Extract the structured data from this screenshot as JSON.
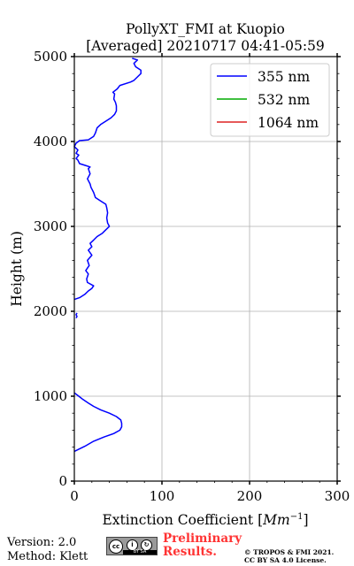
{
  "chart_data": {
    "type": "line",
    "title_line1": "PollyXT_FMI at Kuopio",
    "title_line2": "[Averaged] 20210717 04:41-05:59",
    "xlabel_prefix": "Extinction Coefficient [",
    "xlabel_unit": "Mm",
    "xlabel_exp": "−1",
    "xlabel_suffix": "]",
    "ylabel": "Height (m)",
    "xlim": [
      0,
      300
    ],
    "ylim": [
      0,
      5000
    ],
    "xticks": [
      0,
      100,
      200,
      300
    ],
    "yticks": [
      0,
      1000,
      2000,
      3000,
      4000,
      5000
    ],
    "grid": true,
    "legend_position": "top-right",
    "series": [
      {
        "name": "355 nm",
        "color": "#0000ff",
        "segments": [
          [
            [
              0,
              350
            ],
            [
              12,
              410
            ],
            [
              22,
              470
            ],
            [
              34,
              520
            ],
            [
              45,
              560
            ],
            [
              52,
              600
            ],
            [
              54,
              640
            ],
            [
              54,
              680
            ],
            [
              53,
              720
            ],
            [
              48,
              760
            ],
            [
              40,
              800
            ],
            [
              30,
              840
            ],
            [
              22,
              880
            ],
            [
              16,
              920
            ],
            [
              10,
              960
            ],
            [
              5,
              1000
            ],
            [
              0,
              1040
            ]
          ],
          [
            [
              2,
              1920
            ],
            [
              3,
              1940
            ],
            [
              2,
              1960
            ],
            [
              3,
              1980
            ]
          ],
          [
            [
              0,
              2140
            ],
            [
              6,
              2160
            ],
            [
              12,
              2200
            ],
            [
              16,
              2240
            ],
            [
              20,
              2270
            ],
            [
              22,
              2300
            ],
            [
              15,
              2340
            ],
            [
              14,
              2380
            ],
            [
              16,
              2440
            ],
            [
              13,
              2480
            ],
            [
              17,
              2540
            ],
            [
              15,
              2600
            ],
            [
              20,
              2660
            ],
            [
              16,
              2720
            ],
            [
              20,
              2760
            ],
            [
              18,
              2800
            ],
            [
              22,
              2840
            ],
            [
              26,
              2880
            ],
            [
              32,
              2920
            ],
            [
              36,
              2960
            ],
            [
              40,
              3000
            ],
            [
              38,
              3040
            ],
            [
              37,
              3100
            ],
            [
              38,
              3160
            ],
            [
              37,
              3220
            ],
            [
              36,
              3260
            ],
            [
              30,
              3300
            ],
            [
              24,
              3340
            ],
            [
              22,
              3400
            ],
            [
              19,
              3460
            ],
            [
              18,
              3500
            ],
            [
              15,
              3560
            ],
            [
              18,
              3620
            ],
            [
              16,
              3680
            ],
            [
              18,
              3700
            ],
            [
              12,
              3720
            ],
            [
              6,
              3740
            ],
            [
              4,
              3780
            ],
            [
              2,
              3800
            ],
            [
              5,
              3840
            ],
            [
              2,
              3860
            ],
            [
              4,
              3900
            ],
            [
              0,
              3940
            ],
            [
              2,
              3980
            ],
            [
              6,
              4010
            ],
            [
              16,
              4020
            ],
            [
              22,
              4060
            ],
            [
              24,
              4100
            ],
            [
              26,
              4160
            ],
            [
              30,
              4200
            ],
            [
              36,
              4240
            ],
            [
              42,
              4280
            ],
            [
              46,
              4320
            ],
            [
              48,
              4360
            ],
            [
              48,
              4420
            ],
            [
              47,
              4460
            ],
            [
              45,
              4500
            ],
            [
              46,
              4560
            ],
            [
              44,
              4580
            ],
            [
              49,
              4620
            ],
            [
              52,
              4660
            ],
            [
              64,
              4700
            ],
            [
              68,
              4720
            ],
            [
              72,
              4760
            ],
            [
              76,
              4800
            ],
            [
              76,
              4840
            ],
            [
              70,
              4880
            ],
            [
              68,
              4920
            ],
            [
              72,
              4960
            ],
            [
              66,
              4980
            ]
          ]
        ]
      },
      {
        "name": "532 nm",
        "color": "#00aa00",
        "segments": []
      },
      {
        "name": "1064 nm",
        "color": "#dd2222",
        "segments": []
      }
    ]
  },
  "footer": {
    "version": "Version: 2.0",
    "method": "Method: Klett",
    "license_badge": "cc",
    "preliminary_line1": "Preliminary",
    "preliminary_line2": "Results.",
    "copyright_line1": "© TROPOS & FMI 2021.",
    "copyright_line2": "CC BY SA 4.0 License."
  }
}
